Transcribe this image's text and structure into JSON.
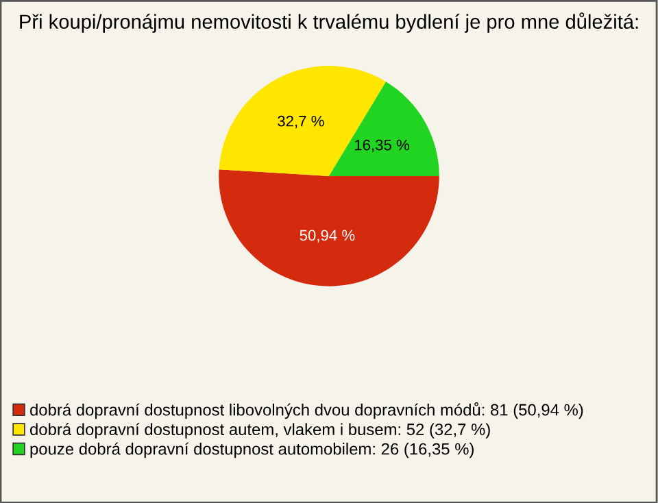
{
  "chart_data": {
    "type": "pie",
    "title": "Při koupi/pronájmu nemovitosti k trvalému bydlení je pro mne důležitá:",
    "categories": [
      "dobrá dopravní dostupnost libovolných dvou dopravních módů: 81 (50,94 %)",
      "dobrá dopravní dostupnost autem, vlakem i busem: 52 (32,7 %)",
      "pouze dobrá dopravní dostupnost automobilem: 26 (16,35 %)"
    ],
    "values": [
      50.94,
      32.7,
      16.35
    ],
    "value_labels": [
      "50,94 %",
      "32,7 %",
      "16,35 %"
    ],
    "colors": [
      "#d42a0e",
      "#ffe600",
      "#22d422"
    ],
    "legend": "bottom left"
  }
}
